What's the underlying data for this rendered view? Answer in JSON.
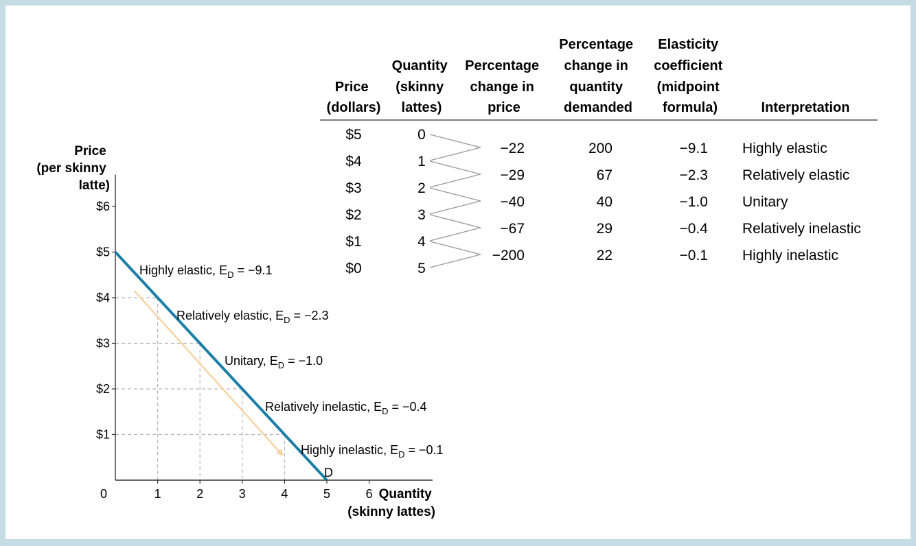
{
  "table": {
    "headers": [
      [
        "Price",
        "(dollars)"
      ],
      [
        "Quantity",
        "(skinny",
        "lattes)"
      ],
      [
        "Percentage",
        "change in",
        "price"
      ],
      [
        "Percentage",
        "change in",
        "quantity",
        "demanded"
      ],
      [
        "Elasticity",
        "coefficient",
        "(midpoint",
        "formula)"
      ],
      [
        "Interpretation"
      ]
    ],
    "prices": [
      "$5",
      "$4",
      "$3",
      "$2",
      "$1",
      "$0"
    ],
    "quantities": [
      "0",
      "1",
      "2",
      "3",
      "4",
      "5"
    ],
    "pct_price": [
      "−22",
      "−29",
      "−40",
      "−67",
      "−200"
    ],
    "pct_quantity": [
      "200",
      "67",
      "40",
      "29",
      "22"
    ],
    "elasticity": [
      "−9.1",
      "−2.3",
      "−1.0",
      "−0.4",
      "−0.1"
    ],
    "interpretation": [
      "Highly elastic",
      "Relatively elastic",
      "Unitary",
      "Relatively inelastic",
      "Highly inelastic"
    ]
  },
  "chart_data": {
    "type": "line",
    "title": "",
    "ylabel": [
      "Price",
      "(per skinny",
      "latte)"
    ],
    "xlabel": [
      "Quantity",
      "(skinny lattes)"
    ],
    "x_ticks": [
      "0",
      "1",
      "2",
      "3",
      "4",
      "5",
      "6"
    ],
    "x_tick_values": [
      0,
      1,
      2,
      3,
      4,
      5,
      6
    ],
    "y_ticks": [
      "$1",
      "$2",
      "$3",
      "$4",
      "$5",
      "$6"
    ],
    "y_tick_values": [
      1,
      2,
      3,
      4,
      5,
      6
    ],
    "xlim": [
      0,
      7.5
    ],
    "ylim": [
      0,
      6.7
    ],
    "grid": "dashed guides at integer points",
    "series": [
      {
        "name": "D",
        "x": [
          0,
          1,
          2,
          3,
          4,
          5
        ],
        "y": [
          5,
          4,
          3,
          2,
          1,
          0
        ],
        "color": "#1a7fa6"
      }
    ],
    "curve_label": "D",
    "arrow": {
      "from": [
        0.45,
        4.15
      ],
      "to": [
        3.95,
        0.55
      ],
      "color": "#f7d3a6"
    },
    "segment_labels": [
      {
        "name": "Highly elastic",
        "sub": "D",
        "value": "−9.1"
      },
      {
        "name": "Relatively elastic",
        "sub": "D",
        "value": "−2.3"
      },
      {
        "name": "Unitary",
        "sub": "D",
        "value": "−1.0"
      },
      {
        "name": "Relatively inelastic",
        "sub": "D",
        "value": "−0.4"
      },
      {
        "name": "Highly inelastic",
        "sub": "D",
        "value": "−0.1"
      }
    ],
    "segment_prefix": "E",
    "equals": "="
  },
  "colors": {
    "background": "#c6dce5",
    "panel": "#ffffff",
    "demand": "#1a7fa6",
    "arrow": "#f7d3a6",
    "grid": "#b5b5b5",
    "connector": "#9a9a9a"
  }
}
